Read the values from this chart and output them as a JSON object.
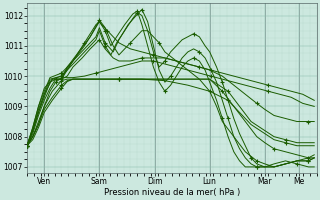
{
  "xlabel": "Pression niveau de la mer( hPa )",
  "bg_color": "#cce8df",
  "line_color": "#1a5c00",
  "ylim": [
    1006.8,
    1012.4
  ],
  "yticks": [
    1007,
    1008,
    1009,
    1010,
    1011,
    1012
  ],
  "day_labels": [
    "Ven",
    "Sam",
    "Dim",
    "Lun",
    "Mar",
    "Me"
  ],
  "day_positions": [
    15,
    63,
    111,
    159,
    207,
    237
  ],
  "xlim": [
    0,
    252
  ],
  "lines_ctrl": [
    [
      [
        0,
        1007.7
      ],
      [
        5,
        1008.0
      ],
      [
        10,
        1008.4
      ],
      [
        15,
        1009.0
      ],
      [
        20,
        1009.5
      ],
      [
        25,
        1009.8
      ],
      [
        30,
        1009.95
      ],
      [
        35,
        1009.95
      ],
      [
        40,
        1009.95
      ],
      [
        50,
        1010.0
      ],
      [
        60,
        1010.1
      ],
      [
        70,
        1010.2
      ],
      [
        80,
        1010.3
      ],
      [
        90,
        1010.4
      ],
      [
        100,
        1010.5
      ],
      [
        110,
        1010.5
      ],
      [
        120,
        1010.4
      ],
      [
        130,
        1010.3
      ],
      [
        140,
        1010.2
      ],
      [
        150,
        1010.1
      ],
      [
        160,
        1010.0
      ],
      [
        170,
        1009.9
      ],
      [
        180,
        1009.8
      ],
      [
        190,
        1009.7
      ],
      [
        200,
        1009.6
      ],
      [
        210,
        1009.5
      ],
      [
        220,
        1009.4
      ],
      [
        230,
        1009.3
      ],
      [
        240,
        1009.1
      ],
      [
        250,
        1009.0
      ]
    ],
    [
      [
        0,
        1007.7
      ],
      [
        5,
        1008.1
      ],
      [
        10,
        1008.7
      ],
      [
        15,
        1009.2
      ],
      [
        20,
        1009.6
      ],
      [
        25,
        1009.9
      ],
      [
        30,
        1009.9
      ],
      [
        35,
        1010.2
      ],
      [
        40,
        1010.5
      ],
      [
        45,
        1010.8
      ],
      [
        50,
        1011.1
      ],
      [
        55,
        1011.4
      ],
      [
        60,
        1011.7
      ],
      [
        63,
        1011.8
      ],
      [
        65,
        1011.7
      ],
      [
        70,
        1011.5
      ],
      [
        75,
        1011.3
      ],
      [
        80,
        1011.1
      ],
      [
        90,
        1010.9
      ],
      [
        100,
        1010.8
      ],
      [
        110,
        1010.7
      ],
      [
        120,
        1010.6
      ],
      [
        130,
        1010.5
      ],
      [
        140,
        1010.4
      ],
      [
        150,
        1010.3
      ],
      [
        160,
        1010.2
      ],
      [
        170,
        1010.1
      ],
      [
        180,
        1010.0
      ],
      [
        190,
        1009.9
      ],
      [
        200,
        1009.8
      ],
      [
        210,
        1009.7
      ],
      [
        220,
        1009.6
      ],
      [
        230,
        1009.5
      ],
      [
        240,
        1009.4
      ],
      [
        250,
        1009.2
      ]
    ],
    [
      [
        0,
        1007.7
      ],
      [
        5,
        1008.2
      ],
      [
        10,
        1008.8
      ],
      [
        15,
        1009.3
      ],
      [
        20,
        1009.8
      ],
      [
        25,
        1009.9
      ],
      [
        30,
        1009.9
      ],
      [
        35,
        1010.3
      ],
      [
        45,
        1010.8
      ],
      [
        55,
        1011.3
      ],
      [
        63,
        1011.85
      ],
      [
        68,
        1011.6
      ],
      [
        75,
        1011.0
      ],
      [
        80,
        1010.7
      ],
      [
        85,
        1010.9
      ],
      [
        90,
        1011.1
      ],
      [
        95,
        1011.3
      ],
      [
        100,
        1011.5
      ],
      [
        105,
        1011.5
      ],
      [
        110,
        1011.3
      ],
      [
        115,
        1011.1
      ],
      [
        120,
        1010.8
      ],
      [
        130,
        1010.5
      ],
      [
        140,
        1010.2
      ],
      [
        150,
        1009.9
      ],
      [
        159,
        1009.5
      ],
      [
        165,
        1009.0
      ],
      [
        170,
        1008.5
      ],
      [
        180,
        1008.0
      ],
      [
        190,
        1007.5
      ],
      [
        200,
        1007.2
      ],
      [
        207,
        1007.1
      ],
      [
        215,
        1007.0
      ],
      [
        225,
        1007.1
      ],
      [
        235,
        1007.2
      ],
      [
        245,
        1007.3
      ],
      [
        250,
        1007.4
      ]
    ],
    [
      [
        0,
        1007.7
      ],
      [
        5,
        1008.2
      ],
      [
        10,
        1008.9
      ],
      [
        15,
        1009.4
      ],
      [
        20,
        1009.9
      ],
      [
        30,
        1010.0
      ],
      [
        40,
        1010.4
      ],
      [
        50,
        1010.8
      ],
      [
        60,
        1011.2
      ],
      [
        63,
        1011.5
      ],
      [
        68,
        1011.0
      ],
      [
        73,
        1010.7
      ],
      [
        78,
        1011.1
      ],
      [
        85,
        1011.5
      ],
      [
        92,
        1011.9
      ],
      [
        96,
        1012.1
      ],
      [
        100,
        1012.0
      ],
      [
        105,
        1011.5
      ],
      [
        110,
        1010.8
      ],
      [
        115,
        1010.3
      ],
      [
        120,
        1010.5
      ],
      [
        125,
        1010.8
      ],
      [
        130,
        1011.0
      ],
      [
        135,
        1011.2
      ],
      [
        140,
        1011.3
      ],
      [
        145,
        1011.4
      ],
      [
        150,
        1011.3
      ],
      [
        155,
        1011.0
      ],
      [
        159,
        1010.8
      ],
      [
        165,
        1010.3
      ],
      [
        170,
        1009.8
      ],
      [
        175,
        1009.2
      ],
      [
        180,
        1008.6
      ],
      [
        185,
        1008.1
      ],
      [
        190,
        1007.7
      ],
      [
        195,
        1007.3
      ],
      [
        200,
        1007.1
      ],
      [
        207,
        1007.0
      ],
      [
        215,
        1007.1
      ],
      [
        225,
        1007.2
      ],
      [
        235,
        1007.1
      ],
      [
        245,
        1007.0
      ],
      [
        250,
        1007.0
      ]
    ],
    [
      [
        0,
        1007.7
      ],
      [
        5,
        1008.3
      ],
      [
        10,
        1009.0
      ],
      [
        15,
        1009.5
      ],
      [
        20,
        1009.95
      ],
      [
        30,
        1010.1
      ],
      [
        40,
        1010.5
      ],
      [
        50,
        1010.9
      ],
      [
        60,
        1011.3
      ],
      [
        63,
        1011.6
      ],
      [
        68,
        1011.1
      ],
      [
        75,
        1010.8
      ],
      [
        80,
        1011.2
      ],
      [
        88,
        1011.7
      ],
      [
        95,
        1012.0
      ],
      [
        100,
        1012.2
      ],
      [
        105,
        1011.8
      ],
      [
        110,
        1011.0
      ],
      [
        115,
        1010.2
      ],
      [
        120,
        1009.8
      ],
      [
        125,
        1010.0
      ],
      [
        130,
        1010.3
      ],
      [
        135,
        1010.6
      ],
      [
        140,
        1010.8
      ],
      [
        145,
        1010.9
      ],
      [
        150,
        1010.8
      ],
      [
        155,
        1010.6
      ],
      [
        159,
        1010.3
      ],
      [
        165,
        1009.8
      ],
      [
        170,
        1009.2
      ],
      [
        175,
        1008.6
      ],
      [
        180,
        1008.0
      ],
      [
        185,
        1007.6
      ],
      [
        190,
        1007.3
      ],
      [
        195,
        1007.1
      ],
      [
        200,
        1007.0
      ],
      [
        207,
        1007.0
      ],
      [
        215,
        1007.0
      ],
      [
        225,
        1007.1
      ],
      [
        235,
        1007.2
      ],
      [
        245,
        1007.2
      ],
      [
        250,
        1007.3
      ]
    ],
    [
      [
        0,
        1007.7
      ],
      [
        5,
        1008.3
      ],
      [
        10,
        1009.0
      ],
      [
        15,
        1009.6
      ],
      [
        22,
        1009.9
      ],
      [
        30,
        1010.0
      ],
      [
        40,
        1010.5
      ],
      [
        50,
        1011.0
      ],
      [
        55,
        1011.3
      ],
      [
        63,
        1011.8
      ],
      [
        68,
        1011.5
      ],
      [
        73,
        1011.0
      ],
      [
        78,
        1011.3
      ],
      [
        85,
        1011.7
      ],
      [
        92,
        1012.05
      ],
      [
        96,
        1012.15
      ],
      [
        100,
        1011.7
      ],
      [
        105,
        1011.0
      ],
      [
        110,
        1010.3
      ],
      [
        115,
        1009.8
      ],
      [
        120,
        1009.5
      ],
      [
        125,
        1009.7
      ],
      [
        130,
        1010.0
      ],
      [
        135,
        1010.3
      ],
      [
        140,
        1010.5
      ],
      [
        145,
        1010.6
      ],
      [
        150,
        1010.5
      ],
      [
        155,
        1010.2
      ],
      [
        159,
        1009.8
      ],
      [
        165,
        1009.2
      ],
      [
        170,
        1008.6
      ],
      [
        175,
        1008.0
      ],
      [
        180,
        1007.5
      ],
      [
        185,
        1007.2
      ],
      [
        190,
        1007.0
      ],
      [
        200,
        1007.0
      ],
      [
        207,
        1007.0
      ],
      [
        215,
        1007.0
      ],
      [
        225,
        1007.1
      ],
      [
        235,
        1007.2
      ],
      [
        245,
        1007.2
      ],
      [
        250,
        1007.3
      ]
    ],
    [
      [
        0,
        1007.7
      ],
      [
        5,
        1008.0
      ],
      [
        10,
        1008.5
      ],
      [
        15,
        1009.0
      ],
      [
        22,
        1009.5
      ],
      [
        30,
        1009.85
      ],
      [
        35,
        1009.9
      ],
      [
        40,
        1009.9
      ],
      [
        50,
        1009.9
      ],
      [
        63,
        1009.9
      ],
      [
        80,
        1009.9
      ],
      [
        100,
        1009.9
      ],
      [
        120,
        1009.9
      ],
      [
        140,
        1009.9
      ],
      [
        159,
        1009.9
      ],
      [
        170,
        1009.5
      ],
      [
        180,
        1009.0
      ],
      [
        190,
        1008.5
      ],
      [
        200,
        1008.0
      ],
      [
        207,
        1007.8
      ],
      [
        215,
        1007.6
      ],
      [
        225,
        1007.5
      ],
      [
        235,
        1007.4
      ],
      [
        245,
        1007.3
      ],
      [
        250,
        1007.3
      ]
    ],
    [
      [
        0,
        1007.7
      ],
      [
        5,
        1008.0
      ],
      [
        10,
        1008.4
      ],
      [
        15,
        1008.9
      ],
      [
        22,
        1009.3
      ],
      [
        30,
        1009.7
      ],
      [
        35,
        1009.85
      ],
      [
        40,
        1009.9
      ],
      [
        50,
        1009.9
      ],
      [
        63,
        1009.9
      ],
      [
        80,
        1009.9
      ],
      [
        100,
        1009.9
      ],
      [
        120,
        1009.9
      ],
      [
        140,
        1009.9
      ],
      [
        159,
        1009.9
      ],
      [
        175,
        1009.5
      ],
      [
        185,
        1009.0
      ],
      [
        195,
        1008.5
      ],
      [
        207,
        1008.2
      ],
      [
        215,
        1008.0
      ],
      [
        225,
        1007.9
      ],
      [
        235,
        1007.8
      ],
      [
        245,
        1007.8
      ],
      [
        250,
        1007.8
      ]
    ],
    [
      [
        0,
        1007.7
      ],
      [
        5,
        1007.9
      ],
      [
        10,
        1008.3
      ],
      [
        15,
        1008.8
      ],
      [
        22,
        1009.2
      ],
      [
        30,
        1009.6
      ],
      [
        35,
        1009.82
      ],
      [
        40,
        1009.9
      ],
      [
        50,
        1009.9
      ],
      [
        63,
        1009.9
      ],
      [
        80,
        1009.9
      ],
      [
        100,
        1009.9
      ],
      [
        120,
        1009.85
      ],
      [
        140,
        1009.7
      ],
      [
        159,
        1009.5
      ],
      [
        175,
        1009.2
      ],
      [
        185,
        1008.8
      ],
      [
        195,
        1008.4
      ],
      [
        207,
        1008.1
      ],
      [
        215,
        1007.9
      ],
      [
        225,
        1007.8
      ],
      [
        235,
        1007.7
      ],
      [
        245,
        1007.7
      ],
      [
        250,
        1007.7
      ]
    ],
    [
      [
        0,
        1007.7
      ],
      [
        5,
        1008.2
      ],
      [
        10,
        1008.8
      ],
      [
        15,
        1009.4
      ],
      [
        22,
        1009.9
      ],
      [
        30,
        1009.9
      ],
      [
        35,
        1010.0
      ],
      [
        40,
        1010.3
      ],
      [
        48,
        1010.6
      ],
      [
        55,
        1010.9
      ],
      [
        63,
        1011.2
      ],
      [
        68,
        1010.9
      ],
      [
        75,
        1010.6
      ],
      [
        80,
        1010.5
      ],
      [
        90,
        1010.5
      ],
      [
        100,
        1010.6
      ],
      [
        110,
        1010.6
      ],
      [
        120,
        1010.6
      ],
      [
        130,
        1010.5
      ],
      [
        140,
        1010.4
      ],
      [
        150,
        1010.3
      ],
      [
        159,
        1010.2
      ],
      [
        170,
        1010.0
      ],
      [
        180,
        1009.7
      ],
      [
        190,
        1009.4
      ],
      [
        200,
        1009.1
      ],
      [
        207,
        1008.9
      ],
      [
        215,
        1008.7
      ],
      [
        225,
        1008.6
      ],
      [
        235,
        1008.5
      ],
      [
        245,
        1008.5
      ],
      [
        250,
        1008.5
      ]
    ]
  ]
}
